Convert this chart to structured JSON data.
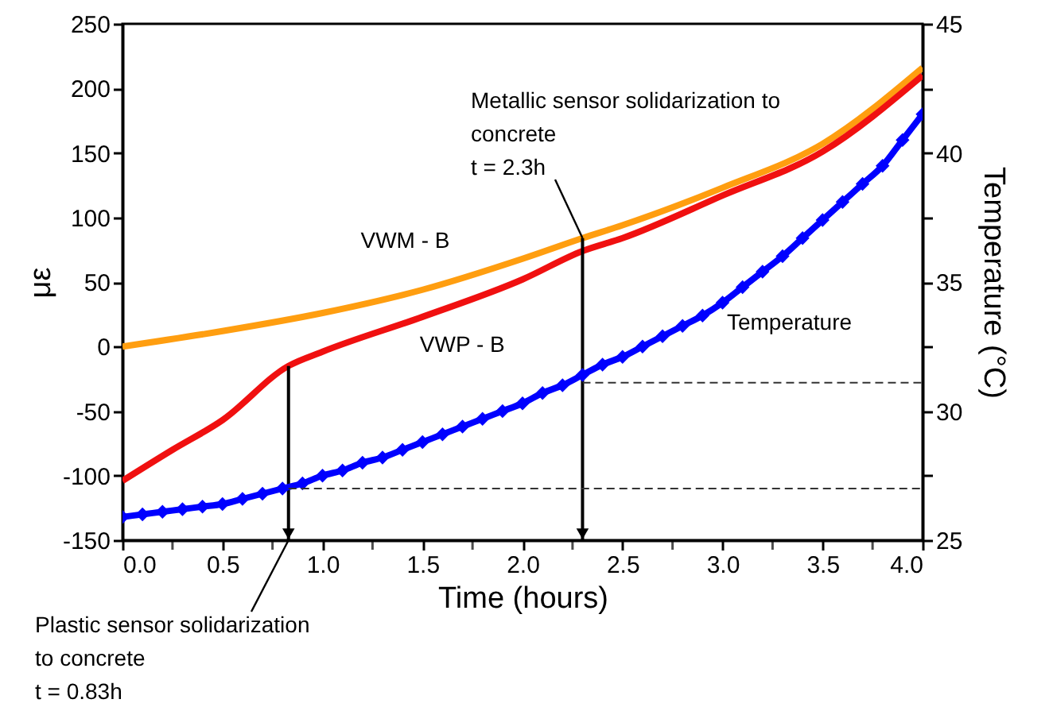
{
  "chart_data": {
    "type": "line",
    "xlabel": "Time (hours)",
    "ylabel": "με",
    "y2label": "Temperature (°C)",
    "xlim": [
      0,
      4
    ],
    "xticks": [
      {
        "value": 0,
        "label": "0.0"
      },
      {
        "value": 0.25,
        "label": null
      },
      {
        "value": 0.5,
        "label": "0.5"
      },
      {
        "value": 0.75,
        "label": null
      },
      {
        "value": 1,
        "label": "1.0"
      },
      {
        "value": 1.25,
        "label": null
      },
      {
        "value": 1.5,
        "label": "1.5"
      },
      {
        "value": 1.75,
        "label": null
      },
      {
        "value": 2,
        "label": "2.0"
      },
      {
        "value": 2.25,
        "label": null
      },
      {
        "value": 2.5,
        "label": "2.5"
      },
      {
        "value": 2.75,
        "label": null
      },
      {
        "value": 3,
        "label": "3.0"
      },
      {
        "value": 3.25,
        "label": null
      },
      {
        "value": 3.5,
        "label": "3.5"
      },
      {
        "value": 3.75,
        "label": null
      },
      {
        "value": 4,
        "label": "4.0"
      }
    ],
    "ylim": [
      -150,
      250
    ],
    "yticks": [
      -150,
      -100,
      -50,
      0,
      50,
      100,
      150,
      200,
      250
    ],
    "y2lim": [
      25,
      45
    ],
    "y2ticks": [
      25,
      {
        "value": 27.5,
        "label": null
      },
      30,
      {
        "value": 32.5,
        "label": null
      },
      35,
      {
        "value": 37.5,
        "label": null
      },
      40,
      {
        "value": 42.5,
        "label": null
      },
      45
    ],
    "grid": false,
    "series": [
      {
        "name": "VWM - B",
        "color": "#ff9e10",
        "marker": "none",
        "line_style": "solid",
        "x": [
          0,
          0.5,
          1,
          1.5,
          2,
          2.3,
          2.5,
          3,
          3.5,
          4
        ],
        "values": [
          0,
          12,
          26,
          44,
          68,
          84,
          94,
          123,
          157,
          216
        ]
      },
      {
        "name": "VWP - B",
        "color": "#f01010",
        "marker": "none",
        "line_style": "solid",
        "x": [
          0,
          0.25,
          0.5,
          0.83,
          1,
          1.5,
          2,
          2.3,
          2.5,
          3,
          3.5,
          4
        ],
        "values": [
          -104,
          -80,
          -57,
          -15,
          -4,
          23,
          52,
          74,
          84,
          117,
          151,
          210
        ]
      },
      {
        "name": "Temperature",
        "color": "#0000ff",
        "axis": "y2",
        "marker": "diamond",
        "line_style": "solid",
        "x": [
          0,
          0.1,
          0.2,
          0.3,
          0.4,
          0.5,
          0.6,
          0.7,
          0.8,
          0.9,
          1,
          1.1,
          1.2,
          1.3,
          1.4,
          1.5,
          1.6,
          1.7,
          1.8,
          1.9,
          2,
          2.1,
          2.2,
          2.3,
          2.4,
          2.5,
          2.6,
          2.7,
          2.8,
          2.9,
          3,
          3.1,
          3.2,
          3.3,
          3.4,
          3.5,
          3.6,
          3.7,
          3.8,
          3.9,
          4
        ],
        "values": [
          25.9,
          26,
          26.1,
          26.2,
          26.3,
          26.4,
          26.6,
          26.8,
          27,
          27.2,
          27.5,
          27.7,
          28,
          28.2,
          28.5,
          28.8,
          29.1,
          29.4,
          29.7,
          30,
          30.3,
          30.7,
          31,
          31.4,
          31.8,
          32.1,
          32.5,
          32.9,
          33.3,
          33.7,
          34.2,
          34.8,
          35.4,
          36,
          36.7,
          37.4,
          38.1,
          38.8,
          39.5,
          40.5,
          41.5
        ]
      },
      {
        "color": "#333333",
        "axis": "y2",
        "marker": "none",
        "line_style": "dashed",
        "x": [
          0.83,
          4
        ],
        "values": [
          27,
          27
        ]
      },
      {
        "color": "#333333",
        "axis": "y2",
        "marker": "none",
        "line_style": "dashed",
        "x": [
          2.3,
          4
        ],
        "values": [
          31.1,
          31.1
        ]
      }
    ],
    "ref_lines": [
      {
        "axis": "x",
        "value": 2.3,
        "label": "Metallic sensor solidarization to\nconcrete\nt = 2.3h",
        "color": "#000000"
      },
      {
        "axis": "x",
        "value": 0.83,
        "label": "Plastic sensor solidarization\nto concrete\nt = 0.83h",
        "color": "#000000"
      }
    ]
  }
}
